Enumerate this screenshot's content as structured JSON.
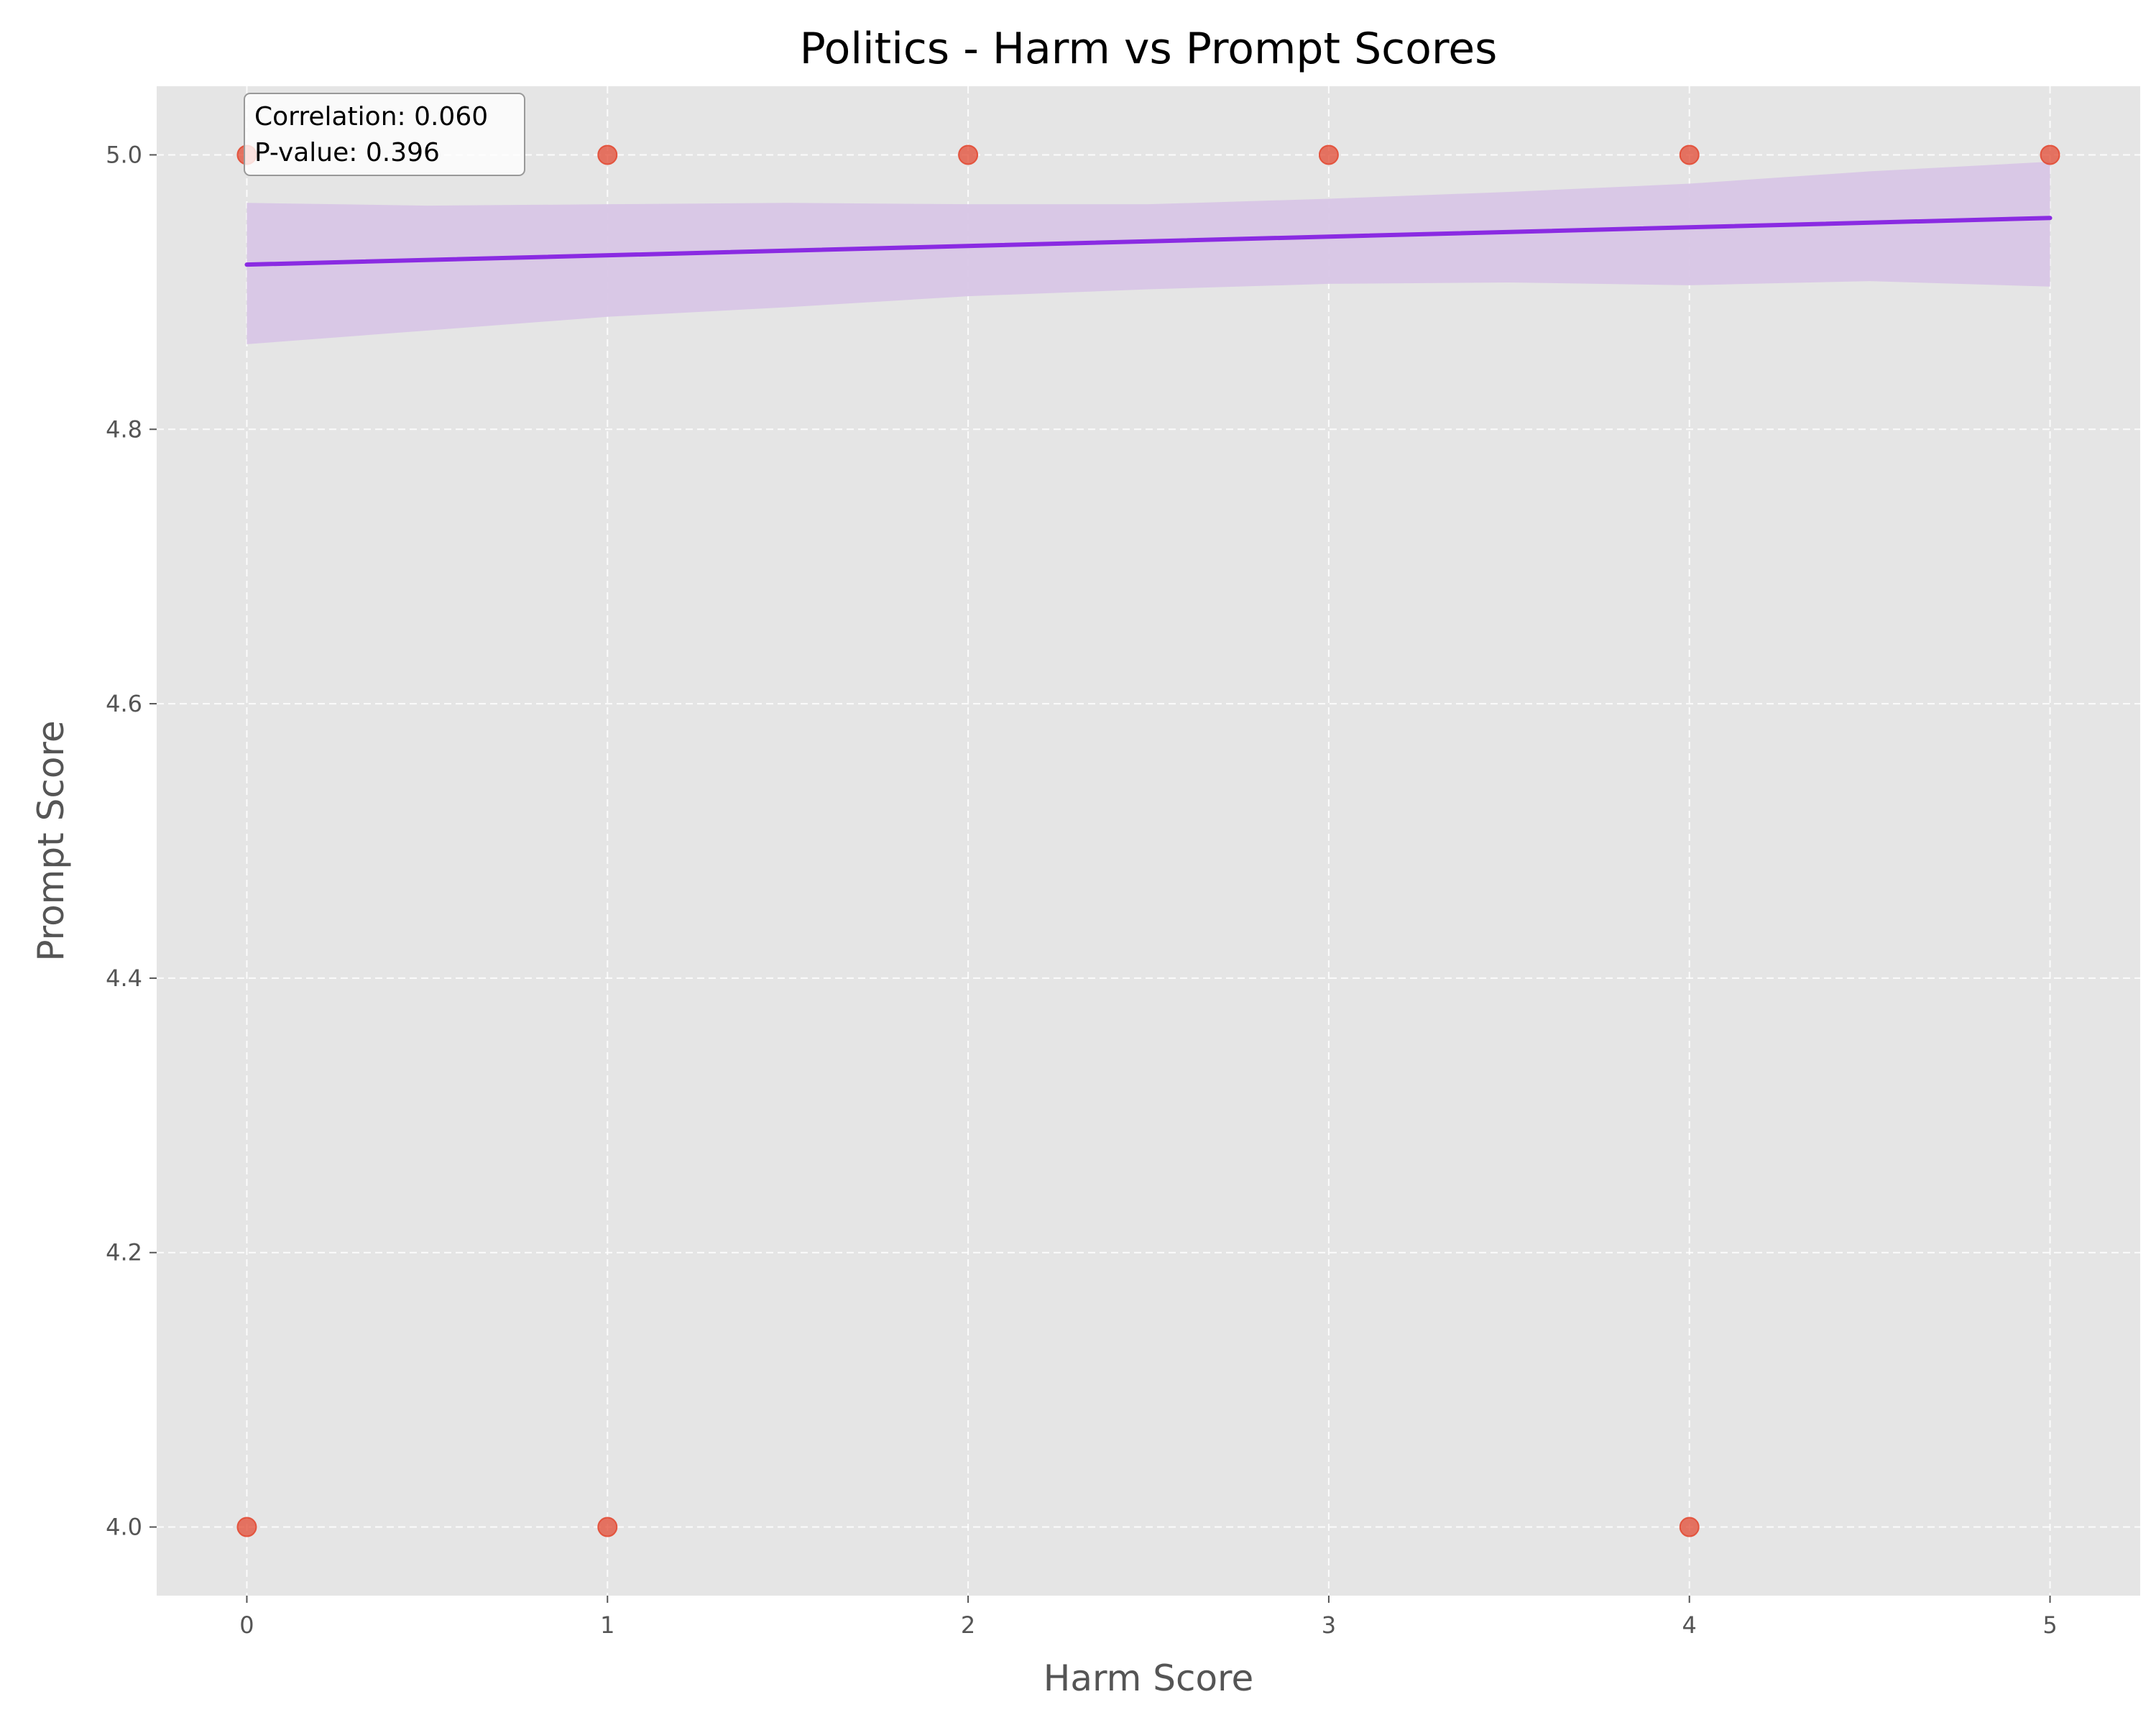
{
  "chart_data": {
    "type": "scatter",
    "title": "Politics - Harm vs Prompt Scores",
    "xlabel": "Harm Score",
    "ylabel": "Prompt Score",
    "xlim": [
      -0.25,
      5.25
    ],
    "ylim": [
      3.95,
      5.05
    ],
    "xticks": [
      0,
      1,
      2,
      3,
      4,
      5
    ],
    "xtick_labels": [
      "0",
      "1",
      "2",
      "3",
      "4",
      "5"
    ],
    "yticks": [
      4.0,
      4.2,
      4.4,
      4.6,
      4.8,
      5.0
    ],
    "ytick_labels": [
      "4.0",
      "4.2",
      "4.4",
      "4.6",
      "4.8",
      "5.0"
    ],
    "grid": true,
    "points": [
      {
        "x": 0,
        "y": 5.0
      },
      {
        "x": 1,
        "y": 5.0
      },
      {
        "x": 2,
        "y": 5.0
      },
      {
        "x": 3,
        "y": 5.0
      },
      {
        "x": 4,
        "y": 5.0
      },
      {
        "x": 5,
        "y": 5.0
      },
      {
        "x": 0,
        "y": 4.0
      },
      {
        "x": 1,
        "y": 4.0
      },
      {
        "x": 4,
        "y": 4.0
      }
    ],
    "regression": {
      "line": [
        {
          "x": 0,
          "y": 4.92
        },
        {
          "x": 5,
          "y": 4.954
        }
      ],
      "ci_upper": [
        {
          "x": 0,
          "y": 4.965
        },
        {
          "x": 0.5,
          "y": 4.963
        },
        {
          "x": 1,
          "y": 4.964
        },
        {
          "x": 1.5,
          "y": 4.965
        },
        {
          "x": 2,
          "y": 4.964
        },
        {
          "x": 2.5,
          "y": 4.964
        },
        {
          "x": 3,
          "y": 4.968
        },
        {
          "x": 3.5,
          "y": 4.973
        },
        {
          "x": 4,
          "y": 4.979
        },
        {
          "x": 4.5,
          "y": 4.988
        },
        {
          "x": 5,
          "y": 4.995
        }
      ],
      "ci_lower": [
        {
          "x": 0,
          "y": 4.862
        },
        {
          "x": 0.5,
          "y": 4.872
        },
        {
          "x": 1,
          "y": 4.882
        },
        {
          "x": 1.5,
          "y": 4.889
        },
        {
          "x": 2,
          "y": 4.897
        },
        {
          "x": 2.5,
          "y": 4.902
        },
        {
          "x": 3,
          "y": 4.906
        },
        {
          "x": 3.5,
          "y": 4.907
        },
        {
          "x": 4,
          "y": 4.905
        },
        {
          "x": 4.5,
          "y": 4.908
        },
        {
          "x": 5,
          "y": 4.904
        }
      ]
    },
    "annotation": {
      "correlation": "Correlation: 0.060",
      "pvalue": "P-value: 0.396"
    },
    "colors": {
      "background": "#e5e5e5",
      "grid": "#ffffff",
      "points": "#e24a33",
      "line": "#8a2be2",
      "band": "#d8c6e6",
      "text": "#555555",
      "title": "#000000"
    }
  }
}
